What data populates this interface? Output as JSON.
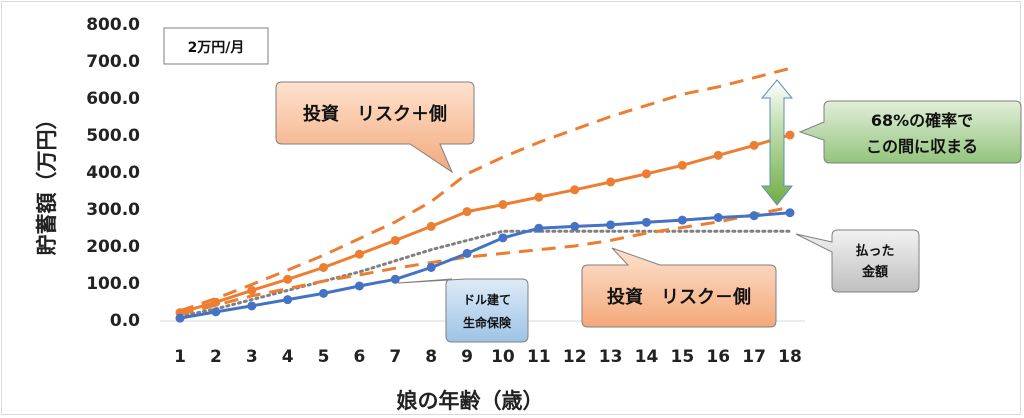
{
  "chart_data": {
    "type": "line",
    "xlabel": "娘の年齢（歳）",
    "ylabel": "貯蓄額（万円）",
    "ylim": [
      0,
      800
    ],
    "y_ticks": [
      "0.0",
      "100.0",
      "200.0",
      "300.0",
      "400.0",
      "500.0",
      "600.0",
      "700.0",
      "800.0"
    ],
    "x": [
      1,
      2,
      3,
      4,
      5,
      6,
      7,
      8,
      9,
      10,
      11,
      12,
      13,
      14,
      15,
      16,
      17,
      18
    ],
    "grid": false,
    "series": [
      {
        "key": "blue",
        "style": "solid-markers",
        "color": "#4472c4",
        "values": [
          5,
          22,
          38,
          55,
          72,
          92,
          110,
          142,
          180,
          222,
          248,
          253,
          257,
          264,
          270,
          277,
          282,
          290
        ]
      },
      {
        "key": "orange",
        "style": "solid-markers",
        "color": "#ed7d31",
        "values": [
          20,
          48,
          80,
          110,
          142,
          178,
          215,
          253,
          293,
          312,
          332,
          352,
          373,
          395,
          418,
          445,
          472,
          500
        ]
      },
      {
        "key": "upper",
        "style": "dashed",
        "color": "#ed7d31",
        "values": [
          25,
          58,
          96,
          135,
          175,
          220,
          265,
          320,
          395,
          440,
          480,
          515,
          550,
          580,
          610,
          630,
          655,
          680
        ]
      },
      {
        "key": "lower",
        "style": "dashed",
        "color": "#ed7d31",
        "values": [
          15,
          40,
          65,
          85,
          105,
          122,
          140,
          155,
          170,
          180,
          190,
          200,
          215,
          235,
          250,
          265,
          285,
          305
        ]
      },
      {
        "key": "paid",
        "style": "dotted",
        "color": "#808080",
        "values": [
          10,
          30,
          55,
          80,
          105,
          130,
          160,
          190,
          215,
          240,
          240,
          240,
          240,
          240,
          240,
          240,
          240,
          240
        ]
      }
    ]
  },
  "annotations": {
    "monthly": "2万円/月",
    "upper_label": "投資　リスク＋側",
    "lower_label": "投資　リスク－側",
    "probability_line1": "68%の確率で",
    "probability_line2": "この間に収まる",
    "paid_line1": "払った",
    "paid_line2": "金額",
    "insurance_line1": "ドル建て",
    "insurance_line2": "生命保険"
  },
  "colors": {
    "upper_box": "#f8cbad",
    "lower_box": "#f8cbad",
    "green_box": "#a9d18e",
    "gray_box": "#d9d9d9",
    "blue_box": "#bdd7ee",
    "arrow": "#70ad47"
  }
}
